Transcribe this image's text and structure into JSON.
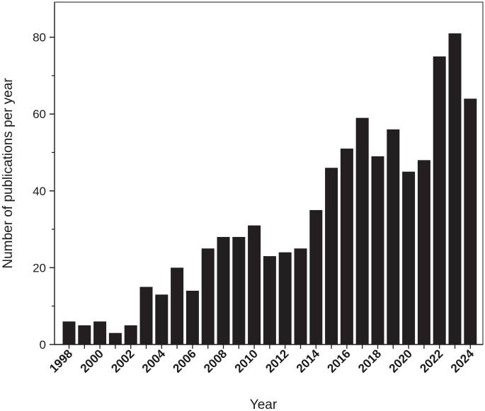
{
  "chart_data": {
    "type": "bar",
    "title": "",
    "xlabel": "Year",
    "ylabel": "Number of publications per year",
    "ylim": [
      0,
      85
    ],
    "yticks": [
      0,
      20,
      40,
      60,
      80
    ],
    "grid": false,
    "legend": "none",
    "bar_color": "#231f20",
    "categories": [
      "1998",
      "1999",
      "2000",
      "2001",
      "2002",
      "2003",
      "2004",
      "2005",
      "2006",
      "2007",
      "2008",
      "2009",
      "2010",
      "2011",
      "2012",
      "2013",
      "2014",
      "2015",
      "2016",
      "2017",
      "2018",
      "2019",
      "2020",
      "2021",
      "2022",
      "2023",
      "2024"
    ],
    "values": [
      6,
      5,
      6,
      3,
      5,
      15,
      13,
      20,
      14,
      25,
      28,
      28,
      31,
      23,
      24,
      25,
      35,
      46,
      51,
      59,
      49,
      56,
      45,
      48,
      75,
      81,
      64
    ],
    "xtick_labels": [
      "1998",
      "2000",
      "2002",
      "2004",
      "2006",
      "2008",
      "2010",
      "2012",
      "2014",
      "2016",
      "2018",
      "2020",
      "2022",
      "2024"
    ]
  }
}
